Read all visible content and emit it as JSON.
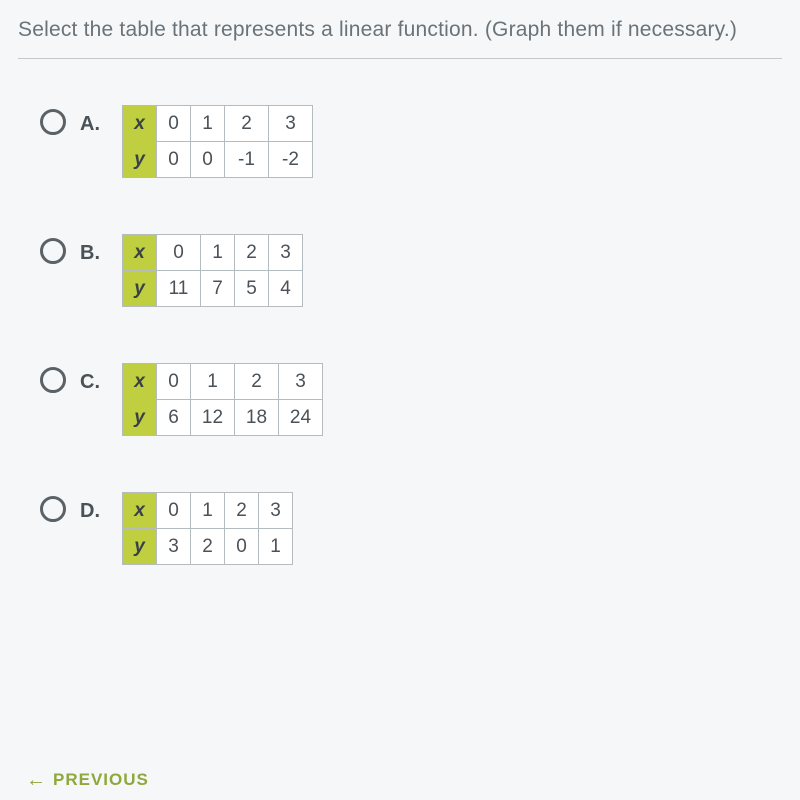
{
  "question": "Select the table that represents a linear function. (Graph them if necessary.)",
  "options": [
    {
      "label": "A.",
      "x_header": "x",
      "y_header": "y",
      "x": [
        "0",
        "1",
        "2",
        "3"
      ],
      "y": [
        "0",
        "0",
        "-1",
        "-2"
      ],
      "widths": [
        "",
        "",
        "wide",
        "wide"
      ]
    },
    {
      "label": "B.",
      "x_header": "x",
      "y_header": "y",
      "x": [
        "0",
        "1",
        "2",
        "3"
      ],
      "y": [
        "11",
        "7",
        "5",
        "4"
      ],
      "widths": [
        "wide",
        "",
        "",
        ""
      ]
    },
    {
      "label": "C.",
      "x_header": "x",
      "y_header": "y",
      "x": [
        "0",
        "1",
        "2",
        "3"
      ],
      "y": [
        "6",
        "12",
        "18",
        "24"
      ],
      "widths": [
        "",
        "wide",
        "wide",
        "wide"
      ]
    },
    {
      "label": "D.",
      "x_header": "x",
      "y_header": "y",
      "x": [
        "0",
        "1",
        "2",
        "3"
      ],
      "y": [
        "3",
        "2",
        "0",
        "1"
      ],
      "widths": [
        "",
        "",
        "",
        ""
      ]
    }
  ],
  "previous_label": "PREVIOUS",
  "colors": {
    "header_bg": "#c0cf3f",
    "accent": "#8fa83b",
    "border": "#b4bcc0",
    "text": "#4a5258",
    "muted": "#6a737a",
    "bg": "#f5f7f8"
  }
}
